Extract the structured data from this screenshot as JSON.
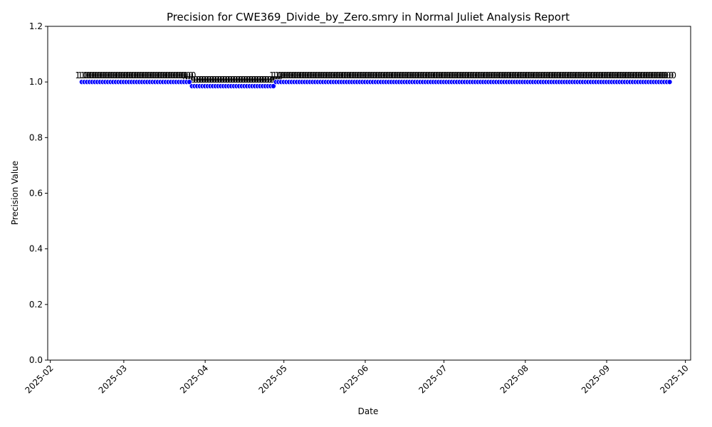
{
  "chart_data": {
    "type": "scatter",
    "title": "Precision for CWE369_Divide_by_Zero.smry in Normal Juliet Analysis Report",
    "xlabel": "Date",
    "ylabel": "Precision Value",
    "x_range": [
      "2025-01-31",
      "2025-10-03"
    ],
    "ylim": [
      0,
      1.2
    ],
    "y_ticks": [
      "0.0",
      "0.2",
      "0.4",
      "0.6",
      "0.8",
      "1.0",
      "1.2"
    ],
    "x_ticks": [
      "2025-02",
      "2025-03",
      "2025-04",
      "2025-05",
      "2025-06",
      "2025-07",
      "2025-08",
      "2025-09",
      "2025-10"
    ],
    "grid": false,
    "legend": "none",
    "marker_color": "#0000ff",
    "marker_edge_color": "#ffffff",
    "series": [
      {
        "segments": [
          {
            "start": "2025-02-13",
            "end": "2025-03-26",
            "value": 1.0,
            "label": "1.0"
          },
          {
            "start": "2025-03-27",
            "end": "2025-04-27",
            "value": 0.985,
            "label": "0.98"
          },
          {
            "start": "2025-04-28",
            "end": "2025-09-25",
            "value": 1.0,
            "label": "1.0"
          }
        ]
      }
    ]
  }
}
